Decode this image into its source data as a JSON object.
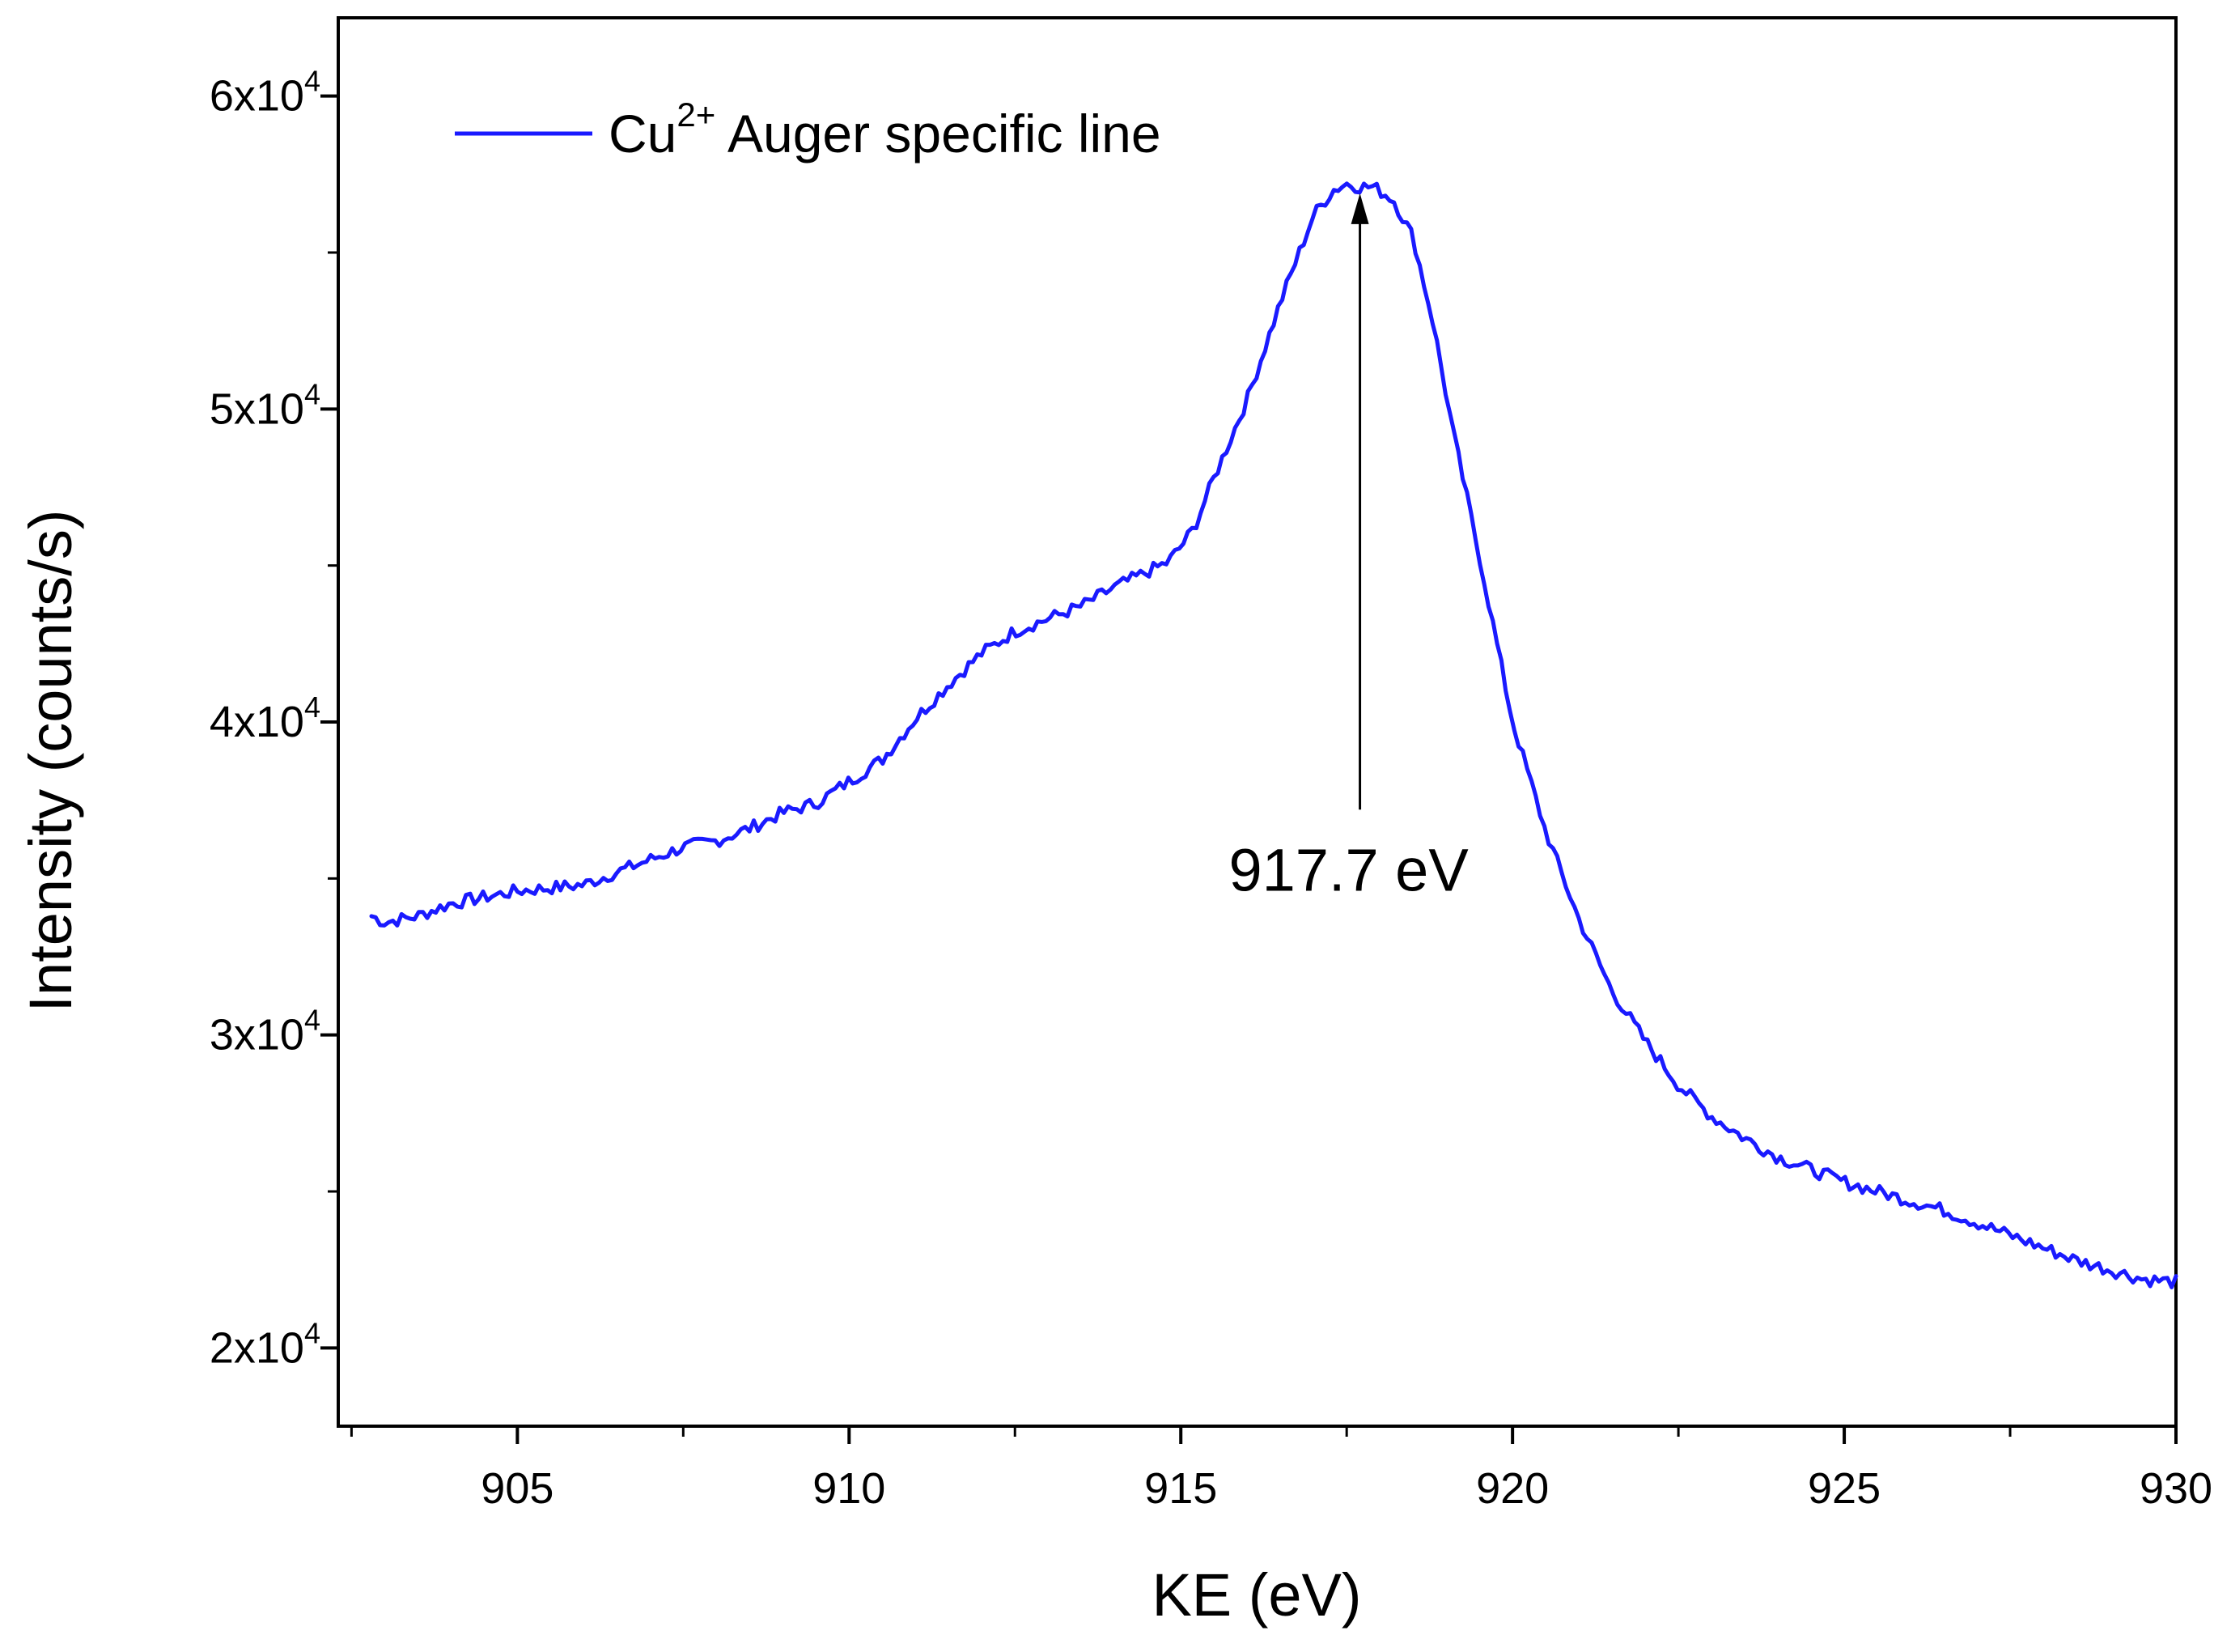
{
  "chart_data": {
    "type": "line",
    "title": "",
    "xlabel": "KE (eV)",
    "ylabel": "Intensity (counts/s)",
    "xlim": [
      902.3,
      930
    ],
    "ylim": [
      17500,
      62500
    ],
    "x_ticks": [
      905,
      910,
      915,
      920,
      925,
      930
    ],
    "x_tick_labels": [
      "905",
      "910",
      "915",
      "920",
      "925",
      "930"
    ],
    "x_minor_ticks": [
      902.5,
      907.5,
      912.5,
      917.5,
      922.5,
      927.5
    ],
    "y_ticks": [
      20000,
      30000,
      40000,
      50000,
      60000
    ],
    "y_tick_labels": [
      {
        "base": "2x10",
        "exp": "4"
      },
      {
        "base": "3x10",
        "exp": "4"
      },
      {
        "base": "4x10",
        "exp": "4"
      },
      {
        "base": "5x10",
        "exp": "4"
      },
      {
        "base": "6x10",
        "exp": "4"
      }
    ],
    "y_minor_ticks": [
      25000,
      35000,
      45000,
      55000
    ],
    "grid": false,
    "legend": {
      "position": "top-left",
      "entries": [
        {
          "series": 0,
          "label_main": "Cu",
          "label_sup": "2+",
          "label_rest": " Auger specific line"
        }
      ]
    },
    "series": [
      {
        "name": "Cu2+ Auger specific line",
        "color": "#1a1aff",
        "x": [
          902.8,
          903.0,
          903.5,
          904.0,
          904.5,
          905.0,
          905.5,
          906.0,
          906.5,
          907.0,
          907.5,
          908.0,
          908.5,
          909.0,
          909.5,
          910.0,
          910.5,
          911.0,
          911.5,
          912.0,
          912.5,
          913.0,
          913.5,
          914.0,
          914.5,
          914.8,
          915.0,
          915.2,
          915.5,
          916.0,
          916.5,
          917.0,
          917.3,
          917.5,
          917.7,
          917.9,
          918.2,
          918.5,
          918.8,
          919.1,
          919.5,
          920.0,
          920.5,
          921.0,
          921.5,
          922.0,
          922.5,
          923.0,
          923.5,
          924.0,
          924.5,
          925.0,
          925.5,
          926.0,
          926.5,
          927.0,
          927.5,
          928.0,
          928.5,
          929.0,
          929.5,
          930.0
        ],
        "y": [
          33800,
          33600,
          33800,
          34200,
          34400,
          34600,
          34700,
          34800,
          35200,
          35600,
          36000,
          36200,
          36600,
          37100,
          37400,
          38100,
          38800,
          40100,
          41200,
          42200,
          42900,
          43300,
          43700,
          44300,
          44800,
          45100,
          45600,
          46200,
          47800,
          50300,
          53400,
          56200,
          57000,
          57200,
          57100,
          57100,
          56700,
          55500,
          52800,
          49300,
          45300,
          40000,
          36500,
          33700,
          31400,
          29800,
          28400,
          27400,
          26700,
          26100,
          25700,
          25300,
          25000,
          24700,
          24400,
          24000,
          23600,
          23200,
          22800,
          22500,
          22200,
          22100
        ]
      }
    ],
    "annotations": [
      {
        "text": "917.7 eV",
        "x": 917.7,
        "y_arrow_tip": 57200,
        "y_arrow_tail": 37200
      }
    ]
  }
}
